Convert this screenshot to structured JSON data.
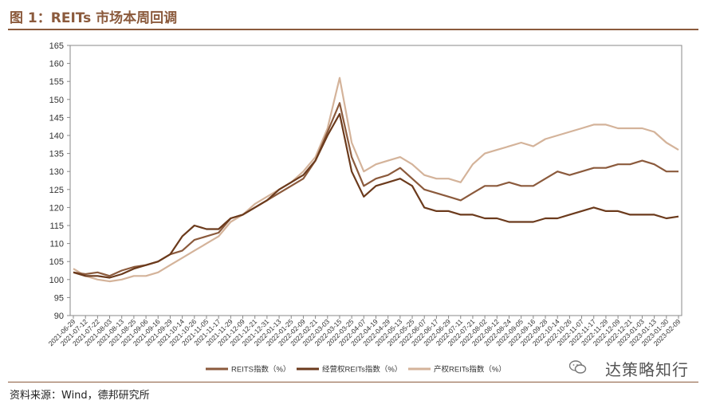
{
  "figure": {
    "title": "图 1：REITs 市场本周回调",
    "source": "资料来源：Wind，德邦研究所",
    "watermark": "达策略知行"
  },
  "chart_data": {
    "type": "line",
    "ylim": [
      90,
      165
    ],
    "yticks": [
      90,
      95,
      100,
      105,
      110,
      115,
      120,
      125,
      130,
      135,
      140,
      145,
      150,
      155,
      160,
      165
    ],
    "grid": false,
    "legend_position": "bottom",
    "x_tick_labels": [
      "2021-06-29",
      "2021-07-12",
      "2021-07-22",
      "2021-08-03",
      "2021-08-13",
      "2021-08-25",
      "2021-09-06",
      "2021-09-16",
      "2021-09-29",
      "2021-10-14",
      "2021-10-26",
      "2021-11-05",
      "2021-11-17",
      "2021-11-29",
      "2021-12-09",
      "2021-12-21",
      "2021-12-31",
      "2022-01-13",
      "2022-01-25",
      "2022-02-09",
      "2022-02-21",
      "2022-03-03",
      "2022-03-15",
      "2022-03-25",
      "2022-04-07",
      "2022-04-19",
      "2022-04-29",
      "2022-05-13",
      "2022-05-25",
      "2022-06-07",
      "2022-06-17",
      "2022-06-29",
      "2022-07-11",
      "2022-07-21",
      "2022-08-02",
      "2022-08-12",
      "2022-08-24",
      "2022-09-05",
      "2022-09-16",
      "2022-09-28",
      "2022-10-14",
      "2022-10-26",
      "2022-11-07",
      "2022-11-17",
      "2022-11-29",
      "2022-12-09",
      "2022-12-21",
      "2023-01-03",
      "2023-01-13",
      "2023-01-30",
      "2023-02-09"
    ],
    "x": [
      "2021-06-29",
      "2021-07-12",
      "2021-07-22",
      "2021-08-03",
      "2021-08-13",
      "2021-08-25",
      "2021-09-06",
      "2021-09-16",
      "2021-09-29",
      "2021-10-14",
      "2021-10-26",
      "2021-11-05",
      "2021-11-17",
      "2021-11-29",
      "2021-12-09",
      "2021-12-21",
      "2021-12-31",
      "2022-01-13",
      "2022-01-25",
      "2022-02-09",
      "2022-02-21",
      "2022-03-03",
      "2022-03-15",
      "2022-03-25",
      "2022-04-07",
      "2022-04-19",
      "2022-04-29",
      "2022-05-13",
      "2022-05-25",
      "2022-06-07",
      "2022-06-17",
      "2022-06-29",
      "2022-07-11",
      "2022-07-21",
      "2022-08-02",
      "2022-08-12",
      "2022-08-24",
      "2022-09-05",
      "2022-09-16",
      "2022-09-28",
      "2022-10-14",
      "2022-10-26",
      "2022-11-07",
      "2022-11-17",
      "2022-11-29",
      "2022-12-09",
      "2022-12-21",
      "2023-01-03",
      "2023-01-13",
      "2023-01-30",
      "2023-02-09"
    ],
    "series": [
      {
        "name": "REITS指数（%）",
        "color": "#8b5a3c",
        "values": [
          102,
          101.5,
          102,
          101,
          102.5,
          103.5,
          104,
          105,
          107,
          108,
          111,
          112,
          113,
          117,
          118,
          120,
          122,
          124,
          126,
          128,
          133,
          141,
          149,
          134,
          126,
          128,
          129,
          131,
          128,
          125,
          124,
          123,
          122,
          124,
          126,
          126,
          127,
          126,
          126,
          128,
          130,
          129,
          130,
          131,
          131,
          132,
          132,
          133,
          132,
          130,
          130
        ]
      },
      {
        "name": "经营权REITs指数（%）",
        "color": "#6b3a1c",
        "values": [
          102,
          101,
          101,
          100.5,
          101.5,
          103,
          104,
          105,
          107,
          112,
          115,
          114,
          114,
          117,
          118,
          120,
          122,
          125,
          127,
          129,
          133,
          140,
          146,
          130,
          123,
          126,
          127,
          128,
          126,
          120,
          119,
          119,
          118,
          118,
          117,
          117,
          116,
          116,
          116,
          117,
          117,
          118,
          119,
          120,
          119,
          119,
          118,
          118,
          118,
          117,
          117.5
        ]
      },
      {
        "name": "产权REITs指数（%）",
        "color": "#d4b39a",
        "values": [
          103,
          101,
          100,
          99.5,
          100,
          101,
          101,
          102,
          104,
          106,
          108,
          110,
          112,
          116,
          118,
          121,
          123,
          125,
          127,
          130,
          134,
          142,
          156,
          138,
          130,
          132,
          133,
          134,
          132,
          129,
          128,
          128,
          127,
          132,
          135,
          136,
          137,
          138,
          137,
          139,
          140,
          141,
          142,
          143,
          143,
          142,
          142,
          142,
          141,
          138,
          136
        ]
      }
    ]
  }
}
